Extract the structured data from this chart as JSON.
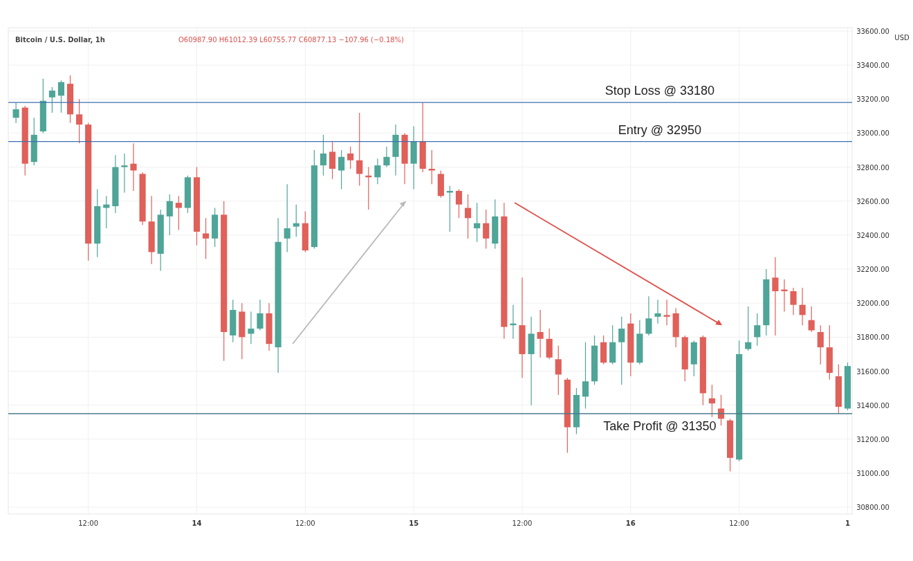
{
  "chart_data": {
    "type": "candlestick",
    "title": "Bitcoin / U.S. Dollar, 1h",
    "subtitle": "O60987.90 H61012.39 L60755.77 C60877.13 −107.96 (−0.18%)",
    "ylabel": "USD",
    "categories": [
      null,
      null,
      null,
      null,
      null,
      null,
      null,
      null,
      "12:00",
      null,
      null,
      null,
      null,
      null,
      null,
      null,
      null,
      null,
      null,
      null,
      "14",
      null,
      null,
      null,
      null,
      null,
      null,
      null,
      null,
      null,
      null,
      null,
      "12:00",
      null,
      null,
      null,
      null,
      null,
      null,
      null,
      null,
      null,
      null,
      null,
      "15",
      null,
      null,
      null,
      null,
      null,
      null,
      null,
      null,
      null,
      null,
      null,
      "12:00",
      null,
      null,
      null,
      null,
      null,
      null,
      null,
      null,
      null,
      null,
      null,
      "16",
      null,
      null,
      null,
      null,
      null,
      null,
      null,
      null,
      null,
      null,
      null,
      "12:00",
      null,
      null,
      null,
      null,
      null,
      null,
      null,
      null,
      null,
      null,
      null,
      "1"
    ],
    "ohlc": [
      [
        33090,
        33180,
        33060,
        33140
      ],
      [
        33150,
        33160,
        32750,
        32820
      ],
      [
        32830,
        33090,
        32810,
        32990
      ],
      [
        33010,
        33320,
        33000,
        33190
      ],
      [
        33210,
        33270,
        33120,
        33250
      ],
      [
        33220,
        33310,
        33120,
        33300
      ],
      [
        33290,
        33340,
        33060,
        33110
      ],
      [
        33110,
        33200,
        32940,
        33050
      ],
      [
        33050,
        33060,
        32250,
        32350
      ],
      [
        32350,
        32670,
        32270,
        32570
      ],
      [
        32560,
        32630,
        32440,
        32580
      ],
      [
        32570,
        32870,
        32530,
        32800
      ],
      [
        32800,
        32880,
        32650,
        32810
      ],
      [
        32820,
        32940,
        32660,
        32780
      ],
      [
        32760,
        32770,
        32460,
        32480
      ],
      [
        32480,
        32630,
        32230,
        32300
      ],
      [
        32290,
        32550,
        32190,
        32520
      ],
      [
        32510,
        32640,
        32400,
        32600
      ],
      [
        32590,
        32630,
        32430,
        32560
      ],
      [
        32560,
        32750,
        32530,
        32740
      ],
      [
        32740,
        32800,
        32340,
        32420
      ],
      [
        32410,
        32500,
        32260,
        32380
      ],
      [
        32380,
        32560,
        32330,
        32520
      ],
      [
        32520,
        32600,
        31660,
        31830
      ],
      [
        31810,
        32020,
        31770,
        31960
      ],
      [
        31950,
        32000,
        31670,
        31800
      ],
      [
        31820,
        31950,
        31760,
        31850
      ],
      [
        31850,
        32020,
        31840,
        31940
      ],
      [
        31940,
        32000,
        31720,
        31760
      ],
      [
        31740,
        32500,
        31590,
        32360
      ],
      [
        32380,
        32700,
        32300,
        32440
      ],
      [
        32450,
        32580,
        32390,
        32470
      ],
      [
        32470,
        32540,
        32300,
        32310
      ],
      [
        32330,
        32900,
        32320,
        32810
      ],
      [
        32810,
        32990,
        32750,
        32880
      ],
      [
        32890,
        32950,
        32730,
        32790
      ],
      [
        32780,
        32900,
        32670,
        32860
      ],
      [
        32880,
        32920,
        32790,
        32840
      ],
      [
        32840,
        33120,
        32690,
        32760
      ],
      [
        32750,
        32800,
        32550,
        32740
      ],
      [
        32740,
        32850,
        32700,
        32810
      ],
      [
        32810,
        32920,
        32800,
        32860
      ],
      [
        32860,
        33050,
        32750,
        32990
      ],
      [
        32990,
        33000,
        32700,
        32820
      ],
      [
        32820,
        33040,
        32670,
        32950
      ],
      [
        32950,
        33180,
        32770,
        32790
      ],
      [
        32790,
        32900,
        32700,
        32780
      ],
      [
        32760,
        32780,
        32620,
        32630
      ],
      [
        32650,
        32690,
        32420,
        32660
      ],
      [
        32660,
        32670,
        32500,
        32580
      ],
      [
        32560,
        32640,
        32380,
        32500
      ],
      [
        32440,
        32590,
        32360,
        32470
      ],
      [
        32470,
        32550,
        32320,
        32380
      ],
      [
        32350,
        32610,
        32320,
        32510
      ],
      [
        32510,
        32590,
        31790,
        31860
      ],
      [
        31870,
        31990,
        31790,
        31880
      ],
      [
        31870,
        32150,
        31560,
        31700
      ],
      [
        31700,
        31920,
        31400,
        31820
      ],
      [
        31830,
        31960,
        31680,
        31790
      ],
      [
        31790,
        31850,
        31670,
        31680
      ],
      [
        31670,
        31750,
        31460,
        31580
      ],
      [
        31550,
        31560,
        31120,
        31270
      ],
      [
        31270,
        31500,
        31230,
        31460
      ],
      [
        31450,
        31770,
        31380,
        31540
      ],
      [
        31540,
        31810,
        31520,
        31750
      ],
      [
        31770,
        31810,
        31640,
        31650
      ],
      [
        31650,
        31870,
        31640,
        31770
      ],
      [
        31770,
        31920,
        31520,
        31850
      ],
      [
        31880,
        31940,
        31570,
        31650
      ],
      [
        31650,
        31900,
        31640,
        31820
      ],
      [
        31820,
        32040,
        31810,
        31910
      ],
      [
        31920,
        32020,
        31880,
        31940
      ],
      [
        31930,
        32020,
        31870,
        31920
      ],
      [
        31940,
        31970,
        31740,
        31800
      ],
      [
        31800,
        31810,
        31540,
        31610
      ],
      [
        31640,
        31780,
        31570,
        31770
      ],
      [
        31800,
        31810,
        31400,
        31470
      ],
      [
        31440,
        31520,
        31330,
        31410
      ],
      [
        31380,
        31460,
        31280,
        31320
      ],
      [
        31310,
        31320,
        31010,
        31090
      ],
      [
        31080,
        31780,
        31070,
        31700
      ],
      [
        31730,
        31980,
        31720,
        31770
      ],
      [
        31800,
        31940,
        31750,
        31870
      ],
      [
        31870,
        32200,
        31810,
        32140
      ],
      [
        32150,
        32270,
        31810,
        32070
      ],
      [
        32080,
        32140,
        31950,
        32070
      ],
      [
        32070,
        32090,
        31930,
        31990
      ],
      [
        31990,
        32090,
        31870,
        31930
      ],
      [
        31900,
        31980,
        31830,
        31840
      ],
      [
        31830,
        31870,
        31640,
        31740
      ],
      [
        31740,
        31870,
        31550,
        31590
      ],
      [
        31570,
        31640,
        31350,
        31390
      ],
      [
        31380,
        31650,
        31370,
        31630
      ]
    ],
    "ylim": [
      30760,
      33620
    ],
    "yticks": [
      {
        "value": 30800,
        "label": "30800.00"
      },
      {
        "value": 31000,
        "label": "31000.00"
      },
      {
        "value": 31200,
        "label": "31200.00"
      },
      {
        "value": 31400,
        "label": "31400.00"
      },
      {
        "value": 31600,
        "label": "31600.00"
      },
      {
        "value": 31800,
        "label": "31800.00"
      },
      {
        "value": 32000,
        "label": "32000.00"
      },
      {
        "value": 32200,
        "label": "32200.00"
      },
      {
        "value": 32400,
        "label": "32400.00"
      },
      {
        "value": 32600,
        "label": "32600.00"
      },
      {
        "value": 32800,
        "label": "32800.00"
      },
      {
        "value": 33000,
        "label": "33000.00"
      },
      {
        "value": 33200,
        "label": "33200.00"
      },
      {
        "value": 33400,
        "label": "33400.00"
      },
      {
        "value": 33600,
        "label": "33600.00"
      }
    ],
    "grid": true,
    "ref_lines": [
      {
        "axis": "y",
        "value": 33180,
        "label": "Stop Loss @ 33180",
        "color": "#3d6fb0"
      },
      {
        "axis": "y",
        "value": 32950,
        "label": "Entry @ 32950",
        "color": "#3d6fb0"
      },
      {
        "axis": "y",
        "value": 31350,
        "label": "Take Profit @ 31350",
        "color": "#4a7a8c"
      }
    ]
  }
}
